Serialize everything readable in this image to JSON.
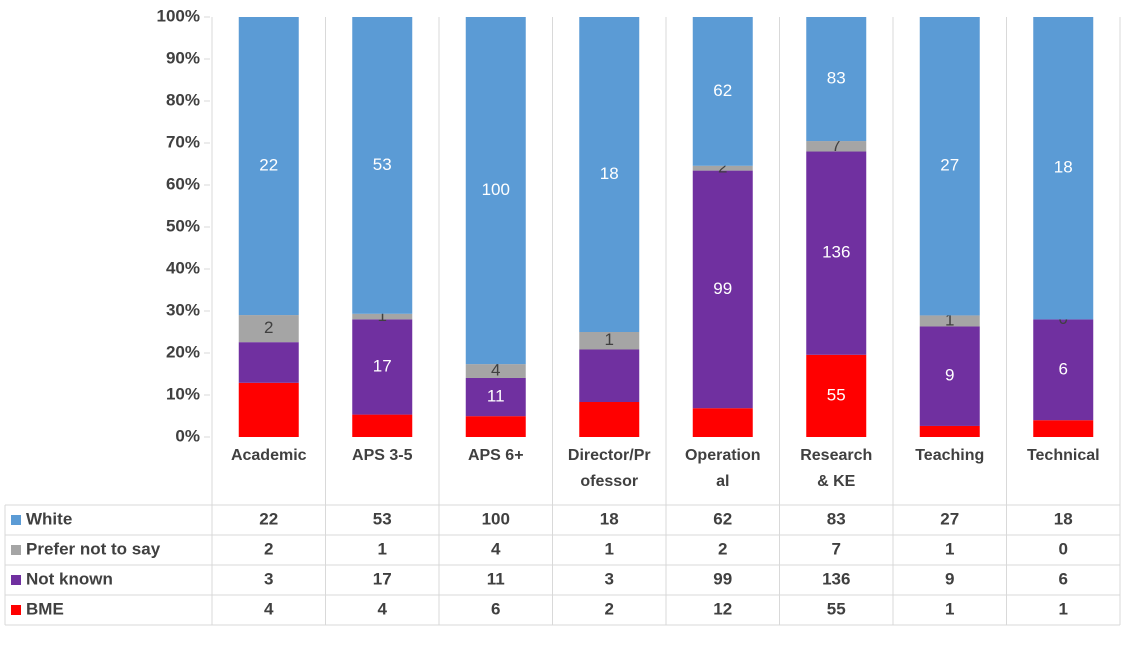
{
  "chart_data": {
    "type": "bar",
    "stacked": "percent",
    "categories": [
      "Academic",
      "APS 3-5",
      "APS 6+",
      "Director/Professor",
      "Operational",
      "Research & KE",
      "Teaching",
      "Technical"
    ],
    "series": [
      {
        "name": "BME",
        "color": "#ff0000",
        "values": [
          4,
          4,
          6,
          2,
          12,
          55,
          1,
          1
        ]
      },
      {
        "name": "Not known",
        "color": "#7030a0",
        "values": [
          3,
          17,
          11,
          3,
          99,
          136,
          9,
          6
        ]
      },
      {
        "name": "Prefer not to say",
        "color": "#a5a5a5",
        "values": [
          2,
          1,
          4,
          1,
          2,
          7,
          1,
          0
        ]
      },
      {
        "name": "White",
        "color": "#5b9bd5",
        "values": [
          22,
          53,
          100,
          18,
          62,
          83,
          27,
          18
        ]
      }
    ],
    "ylim": [
      0,
      100
    ],
    "yticks": [
      {
        "value": 0,
        "label": "0%"
      },
      {
        "value": 10,
        "label": "10%"
      },
      {
        "value": 20,
        "label": "20%"
      },
      {
        "value": 30,
        "label": "30%"
      },
      {
        "value": 40,
        "label": "40%"
      },
      {
        "value": 50,
        "label": "50%"
      },
      {
        "value": 60,
        "label": "60%"
      },
      {
        "value": 70,
        "label": "70%"
      },
      {
        "value": 80,
        "label": "80%"
      },
      {
        "value": 90,
        "label": "90%"
      },
      {
        "value": 100,
        "label": "100%"
      }
    ],
    "data_table": true
  }
}
